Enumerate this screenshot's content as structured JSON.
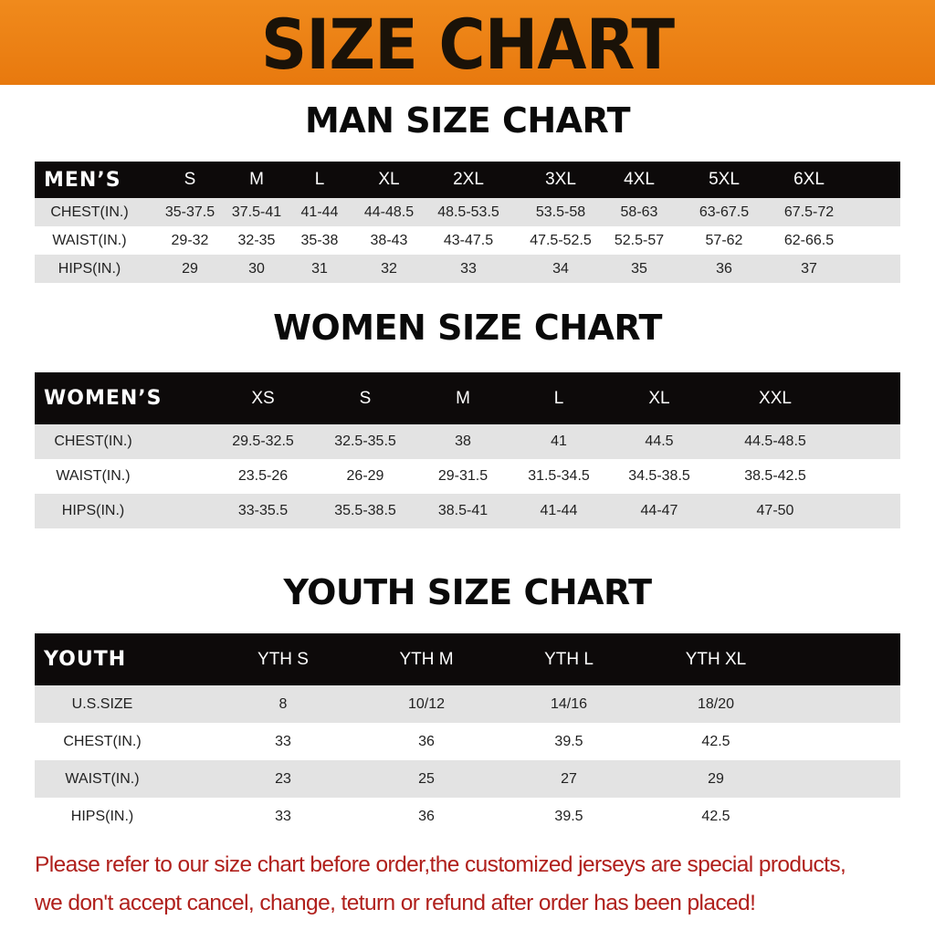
{
  "banner_title": "SIZE CHART",
  "men": {
    "title": "MAN SIZE CHART",
    "header": [
      "MEN’S",
      "S",
      "M",
      "L",
      "XL",
      "2XL",
      "3XL",
      "4XL",
      "5XL",
      "6XL"
    ],
    "rows": [
      [
        "CHEST(IN.)",
        "35-37.5",
        "37.5-41",
        "41-44",
        "44-48.5",
        "48.5-53.5",
        "53.5-58",
        "58-63",
        "63-67.5",
        "67.5-72"
      ],
      [
        "WAIST(IN.)",
        "29-32",
        "32-35",
        "35-38",
        "38-43",
        "43-47.5",
        "47.5-52.5",
        "52.5-57",
        "57-62",
        "62-66.5"
      ],
      [
        "HIPS(IN.)",
        "29",
        "30",
        "31",
        "32",
        "33",
        "34",
        "35",
        "36",
        "37"
      ]
    ]
  },
  "women": {
    "title": "WOMEN SIZE CHART",
    "header": [
      "WOMEN’S",
      "XS",
      "S",
      "M",
      "L",
      "XL",
      "XXL"
    ],
    "rows": [
      [
        "CHEST(IN.)",
        "29.5-32.5",
        "32.5-35.5",
        "38",
        "41",
        "44.5",
        "44.5-48.5"
      ],
      [
        "WAIST(IN.)",
        "23.5-26",
        "26-29",
        "29-31.5",
        "31.5-34.5",
        "34.5-38.5",
        "38.5-42.5"
      ],
      [
        "HIPS(IN.)",
        "33-35.5",
        "35.5-38.5",
        "38.5-41",
        "41-44",
        "44-47",
        "47-50"
      ]
    ]
  },
  "youth": {
    "title": "YOUTH SIZE CHART",
    "header": [
      "YOUTH",
      "YTH S",
      "YTH M",
      "YTH L",
      "YTH XL"
    ],
    "rows": [
      [
        "U.S.SIZE",
        "8",
        "10/12",
        "14/16",
        "18/20"
      ],
      [
        "CHEST(IN.)",
        "33",
        "36",
        "39.5",
        "42.5"
      ],
      [
        "WAIST(IN.)",
        "23",
        "25",
        "27",
        "29"
      ],
      [
        "HIPS(IN.)",
        "33",
        "36",
        "39.5",
        "42.5"
      ]
    ]
  },
  "footer": {
    "line1": "Please refer to our size chart before order,the customized jerseys are special products,",
    "line2": "we don't accept cancel, change, teturn or refund after order has been placed!"
  },
  "colors": {
    "banner": "#ee8416",
    "header_row": "#0d0a0a",
    "stripe": "#e3e3e3",
    "notice": "#b0201c"
  }
}
